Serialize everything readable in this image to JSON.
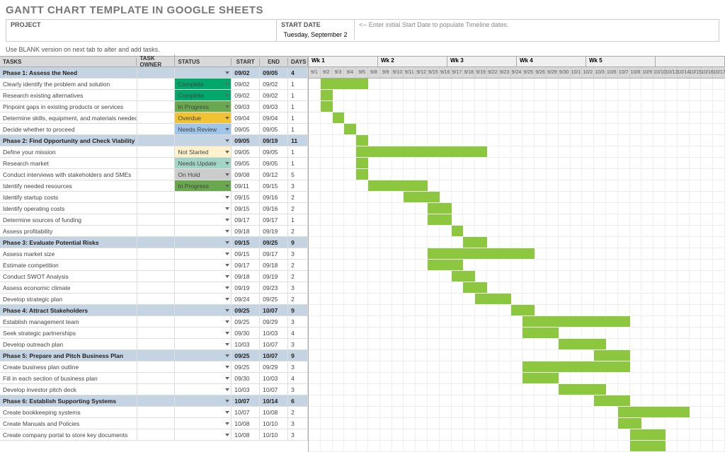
{
  "title": "GANTT CHART TEMPLATE IN GOOGLE SHEETS",
  "project_label": "PROJECT",
  "start_date_label": "START DATE",
  "start_date_value": "Tuesday, September 2",
  "start_date_hint": "<-- Enter initial Start Date to populate Timeline dates.",
  "note": "Use BLANK version on next tab to alter and add tasks.",
  "columns": {
    "task": "TASKS",
    "owner": "TASK OWNER",
    "status": "STATUS",
    "start": "START",
    "end": "END",
    "days": "DAYS"
  },
  "weeks": [
    "Wk 1",
    "Wk 2",
    "Wk 3",
    "Wk 4",
    "Wk 5",
    ""
  ],
  "days": [
    "9/1",
    "9/2",
    "9/3",
    "9/4",
    "9/5",
    "9/8",
    "9/9",
    "9/10",
    "9/11",
    "9/12",
    "9/15",
    "9/16",
    "9/17",
    "9/18",
    "9/19",
    "9/22",
    "9/23",
    "9/24",
    "9/25",
    "9/26",
    "9/29",
    "9/30",
    "10/1",
    "10/2",
    "10/3",
    "10/6",
    "10/7",
    "10/8",
    "10/9",
    "10/10",
    "10/13",
    "10/14",
    "10/15",
    "10/16",
    "10/17"
  ],
  "status_colors": {
    "In Progress": "#6aa84f",
    "Complete": "#00a86b",
    "Overdue": "#f1c232",
    "Needs Review": "#9fc5e8",
    "Not Started": "#fff2cc",
    "Needs Update": "#a2d5c6",
    "On Hold": "#cccccc"
  },
  "bar_color": "#8dc63f",
  "phase_bg": "#c5d4e3",
  "rows": [
    {
      "type": "phase",
      "task": "Phase 1: Assess the Need",
      "start": "09/02",
      "end": "09/05",
      "days": "4",
      "bar": [
        1,
        4
      ]
    },
    {
      "type": "task",
      "task": "Clearly identify the problem and solution",
      "status": "Complete",
      "start": "09/02",
      "end": "09/02",
      "days": "1",
      "bar": [
        1,
        1
      ]
    },
    {
      "type": "task",
      "task": "Research existing alternatives",
      "status": "Complete",
      "start": "09/02",
      "end": "09/02",
      "days": "1",
      "bar": [
        1,
        1
      ]
    },
    {
      "type": "task",
      "task": "Pinpoint gaps in existing products or services",
      "status": "In Progress",
      "start": "09/03",
      "end": "09/03",
      "days": "1",
      "bar": [
        2,
        1
      ]
    },
    {
      "type": "task",
      "task": "Determine skills, equipment, and materials needed",
      "status": "Overdue",
      "start": "09/04",
      "end": "09/04",
      "days": "1",
      "bar": [
        3,
        1
      ]
    },
    {
      "type": "task",
      "task": "Decide whether to proceed",
      "status": "Needs Review",
      "start": "09/05",
      "end": "09/05",
      "days": "1",
      "bar": [
        4,
        1
      ]
    },
    {
      "type": "phase",
      "task": "Phase 2: Find Opportunity and Check Viability",
      "start": "09/05",
      "end": "09/19",
      "days": "11",
      "bar": [
        4,
        11
      ]
    },
    {
      "type": "task",
      "task": "Define your mission",
      "status": "Not Started",
      "start": "09/05",
      "end": "09/05",
      "days": "1",
      "bar": [
        4,
        1
      ]
    },
    {
      "type": "task",
      "task": "Research market",
      "status": "Needs Update",
      "start": "09/05",
      "end": "09/05",
      "days": "1",
      "bar": [
        4,
        1
      ]
    },
    {
      "type": "task",
      "task": "Conduct interviews with stakeholders and SMEs",
      "status": "On Hold",
      "start": "09/08",
      "end": "09/12",
      "days": "5",
      "bar": [
        5,
        5
      ]
    },
    {
      "type": "task",
      "task": "Identify needed resources",
      "status": "In Progress",
      "start": "09/11",
      "end": "09/15",
      "days": "3",
      "bar": [
        8,
        3
      ]
    },
    {
      "type": "task",
      "task": "Identify startup costs",
      "start": "09/15",
      "end": "09/16",
      "days": "2",
      "bar": [
        10,
        2
      ]
    },
    {
      "type": "task",
      "task": "Identify operating costs",
      "start": "09/15",
      "end": "09/16",
      "days": "2",
      "bar": [
        10,
        2
      ]
    },
    {
      "type": "task",
      "task": "Determine sources of funding",
      "start": "09/17",
      "end": "09/17",
      "days": "1",
      "bar": [
        12,
        1
      ]
    },
    {
      "type": "task",
      "task": "Assess profitability",
      "start": "09/18",
      "end": "09/19",
      "days": "2",
      "bar": [
        13,
        2
      ]
    },
    {
      "type": "phase",
      "task": "Phase 3: Evaluate Potential Risks",
      "start": "09/15",
      "end": "09/25",
      "days": "9",
      "bar": [
        10,
        9
      ]
    },
    {
      "type": "task",
      "task": "Assess market size",
      "start": "09/15",
      "end": "09/17",
      "days": "3",
      "bar": [
        10,
        3
      ]
    },
    {
      "type": "task",
      "task": "Estimate competition",
      "start": "09/17",
      "end": "09/18",
      "days": "2",
      "bar": [
        12,
        2
      ]
    },
    {
      "type": "task",
      "task": "Conduct SWOT Analysis",
      "start": "09/18",
      "end": "09/19",
      "days": "2",
      "bar": [
        13,
        2
      ]
    },
    {
      "type": "task",
      "task": "Assess economic climate",
      "start": "09/19",
      "end": "09/23",
      "days": "3",
      "bar": [
        14,
        3
      ]
    },
    {
      "type": "task",
      "task": "Develop strategic plan",
      "start": "09/24",
      "end": "09/25",
      "days": "2",
      "bar": [
        17,
        2
      ]
    },
    {
      "type": "phase",
      "task": "Phase 4: Attract Stakeholders",
      "start": "09/25",
      "end": "10/07",
      "days": "9",
      "bar": [
        18,
        9
      ]
    },
    {
      "type": "task",
      "task": "Establish management team",
      "start": "09/25",
      "end": "09/29",
      "days": "3",
      "bar": [
        18,
        3
      ]
    },
    {
      "type": "task",
      "task": "Seek strategic partnerships",
      "start": "09/30",
      "end": "10/03",
      "days": "4",
      "bar": [
        21,
        4
      ]
    },
    {
      "type": "task",
      "task": "Develop outreach plan",
      "start": "10/03",
      "end": "10/07",
      "days": "3",
      "bar": [
        24,
        3
      ]
    },
    {
      "type": "phase",
      "task": "Phase 5: Prepare and Pitch Business Plan",
      "start": "09/25",
      "end": "10/07",
      "days": "9",
      "bar": [
        18,
        9
      ]
    },
    {
      "type": "task",
      "task": "Create business plan outline",
      "start": "09/25",
      "end": "09/29",
      "days": "3",
      "bar": [
        18,
        3
      ]
    },
    {
      "type": "task",
      "task": "Fill in each section of business plan",
      "start": "09/30",
      "end": "10/03",
      "days": "4",
      "bar": [
        21,
        4
      ]
    },
    {
      "type": "task",
      "task": "Develop investor pitch deck",
      "start": "10/03",
      "end": "10/07",
      "days": "3",
      "bar": [
        24,
        3
      ]
    },
    {
      "type": "phase",
      "task": "Phase 6: Establish Supporting Systems",
      "start": "10/07",
      "end": "10/14",
      "days": "6",
      "bar": [
        26,
        6
      ]
    },
    {
      "type": "task",
      "task": "Create bookkeeping systems",
      "start": "10/07",
      "end": "10/08",
      "days": "2",
      "bar": [
        26,
        2
      ]
    },
    {
      "type": "task",
      "task": "Create Manuals and Policies",
      "start": "10/08",
      "end": "10/10",
      "days": "3",
      "bar": [
        27,
        3
      ]
    },
    {
      "type": "task",
      "task": "Create company portal to store key documents",
      "start": "10/08",
      "end": "10/10",
      "days": "3",
      "bar": [
        27,
        3
      ]
    }
  ]
}
